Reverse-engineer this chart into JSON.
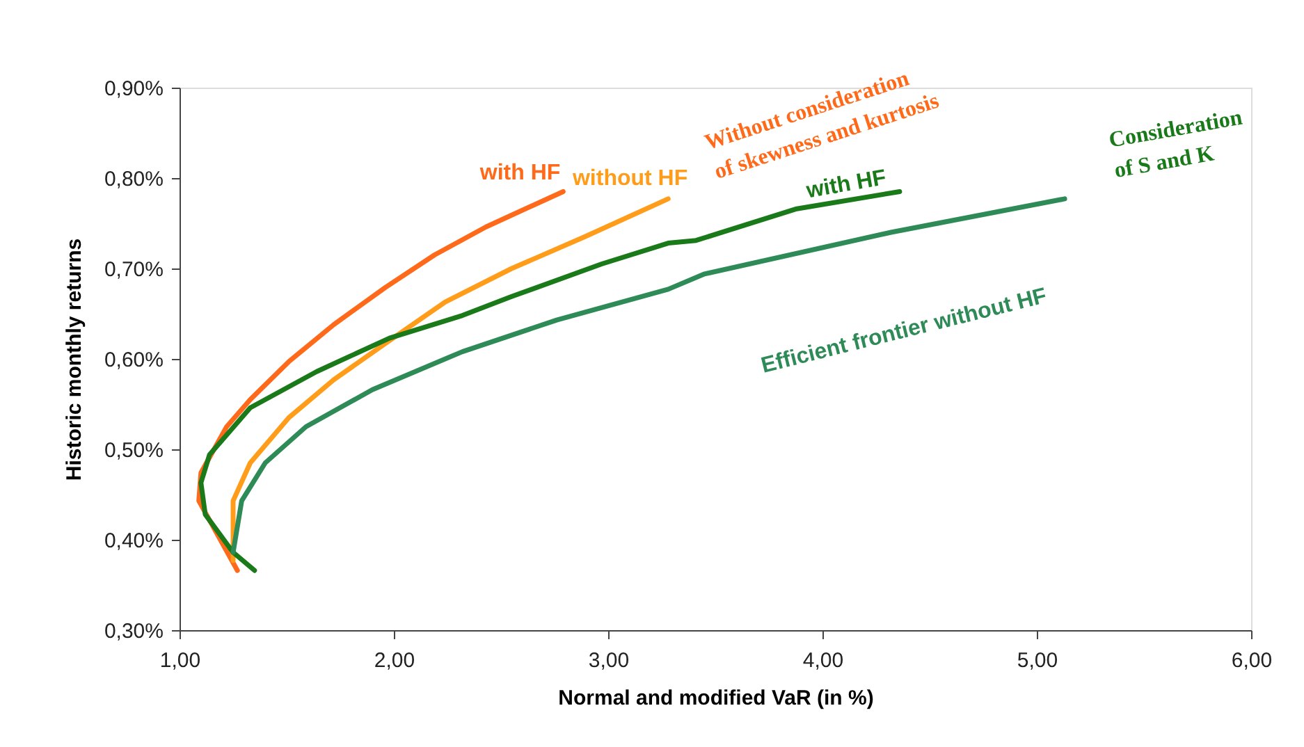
{
  "chart_data": {
    "type": "line",
    "xlabel": "Normal and modified VaR (in %)",
    "ylabel": "Historic monthly returns",
    "xlim": [
      1.0,
      6.0
    ],
    "ylim": [
      0.3,
      0.9
    ],
    "xticks": [
      {
        "value": 1,
        "label": "1,00"
      },
      {
        "value": 2,
        "label": "2,00"
      },
      {
        "value": 3,
        "label": "3,00"
      },
      {
        "value": 4,
        "label": "4,00"
      },
      {
        "value": 5,
        "label": "5,00"
      },
      {
        "value": 6,
        "label": "6,00"
      }
    ],
    "yticks": [
      {
        "value": 0.3,
        "label": "0,30%"
      },
      {
        "value": 0.4,
        "label": "0,40%"
      },
      {
        "value": 0.5,
        "label": "0,50%"
      },
      {
        "value": 0.6,
        "label": "0,60%"
      },
      {
        "value": 0.7,
        "label": "0,70%"
      },
      {
        "value": 0.8,
        "label": "0,80%"
      },
      {
        "value": 0.9,
        "label": "0,90%"
      }
    ],
    "grid": false,
    "legend": false,
    "marker": "none",
    "line_style": "solid",
    "series": [
      {
        "name": "with HF",
        "color": "#ff6a1a",
        "x": [
          1.27,
          1.09,
          1.1,
          1.22,
          1.33,
          1.51,
          1.72,
          1.96,
          2.19,
          2.43,
          2.79
        ],
        "values": [
          0.366,
          0.443,
          0.474,
          0.525,
          0.555,
          0.597,
          0.638,
          0.679,
          0.715,
          0.746,
          0.785
        ]
      },
      {
        "name": "without HF",
        "color": "#ff9d1a",
        "x": [
          1.25,
          1.25,
          1.33,
          1.51,
          1.72,
          1.96,
          2.24,
          2.55,
          2.89,
          3.28
        ],
        "values": [
          0.377,
          0.443,
          0.485,
          0.535,
          0.577,
          0.617,
          0.663,
          0.7,
          0.735,
          0.777
        ]
      },
      {
        "name": "with HF",
        "color": "#1a7a1a",
        "x": [
          1.35,
          1.25,
          1.12,
          1.1,
          1.14,
          1.33,
          1.64,
          1.98,
          2.32,
          2.55,
          2.97,
          3.28,
          3.41,
          3.88,
          4.36
        ],
        "values": [
          0.366,
          0.386,
          0.428,
          0.463,
          0.494,
          0.546,
          0.586,
          0.623,
          0.648,
          0.669,
          0.705,
          0.728,
          0.731,
          0.766,
          0.785
        ]
      },
      {
        "name": "Efficient frontier without  HF",
        "color": "#2e8b57",
        "x": [
          1.25,
          1.29,
          1.4,
          1.59,
          1.9,
          2.32,
          2.76,
          3.28,
          3.45,
          4.32,
          5.13
        ],
        "values": [
          0.386,
          0.443,
          0.485,
          0.525,
          0.566,
          0.608,
          0.643,
          0.677,
          0.694,
          0.74,
          0.777
        ]
      }
    ],
    "annotations": [
      "Without consideration of skewness and kurtosis",
      "Consideration of S and K"
    ]
  }
}
